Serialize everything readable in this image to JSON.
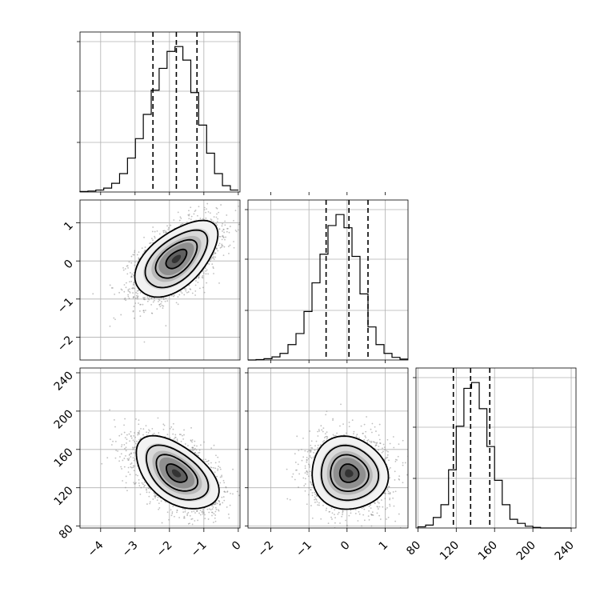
{
  "chart_data": {
    "type": "corner",
    "title": "",
    "grid": true,
    "colors": {
      "line": "#000000",
      "grid": "#b0b0b0",
      "points": "#8a8a8a"
    },
    "parameters": [
      {
        "ticks": [
          -4,
          -3,
          -2,
          -1,
          0
        ],
        "tick_labels": [
          "−4",
          "−3",
          "−2",
          "−1",
          "0"
        ],
        "range": [
          -4.6,
          0.05
        ],
        "median": -1.8,
        "q16": -2.48,
        "q84": -1.2,
        "sd": 0.6
      },
      {
        "ticks": [
          -2,
          -1,
          0,
          1
        ],
        "tick_labels": [
          "−2",
          "−1",
          "0",
          "1"
        ],
        "range": [
          -2.6,
          1.6
        ],
        "median": 0.05,
        "q16": -0.55,
        "q84": 0.55,
        "sd": 0.5
      },
      {
        "ticks": [
          80,
          120,
          160,
          200,
          240
        ],
        "tick_labels": [
          "80",
          "120",
          "160",
          "200",
          "240"
        ],
        "range": [
          78,
          245
        ],
        "median": 135,
        "q16": 117,
        "q84": 155,
        "sd": 19
      }
    ],
    "histograms": [
      {
        "param": 0,
        "bin_edges": [
          -4.6,
          -4.37,
          -4.14,
          -3.91,
          -3.68,
          -3.45,
          -3.22,
          -2.99,
          -2.76,
          -2.53,
          -2.3,
          -2.07,
          -1.84,
          -1.61,
          -1.38,
          -1.15,
          -0.92,
          -0.69,
          -0.46,
          -0.23,
          0.0
        ],
        "counts": [
          1,
          2,
          4,
          8,
          18,
          38,
          70,
          110,
          160,
          210,
          255,
          290,
          300,
          272,
          205,
          138,
          80,
          38,
          13,
          4
        ],
        "quantile_lines": [
          -2.48,
          -1.8,
          -1.2
        ]
      },
      {
        "param": 1,
        "bin_edges": [
          -2.6,
          -2.39,
          -2.18,
          -1.97,
          -1.76,
          -1.55,
          -1.34,
          -1.13,
          -0.92,
          -0.71,
          -0.5,
          -0.29,
          -0.08,
          0.13,
          0.34,
          0.55,
          0.76,
          0.97,
          1.18,
          1.39,
          1.6
        ],
        "counts": [
          0,
          1,
          3,
          7,
          15,
          35,
          60,
          110,
          175,
          240,
          305,
          330,
          300,
          235,
          150,
          75,
          35,
          15,
          6,
          2
        ],
        "quantile_lines": [
          -0.55,
          0.05,
          0.55
        ]
      },
      {
        "param": 2,
        "bin_edges": [
          80,
          88,
          96,
          104,
          112,
          120,
          128,
          136,
          144,
          152,
          160,
          168,
          176,
          184,
          192,
          200,
          208,
          216,
          224,
          232,
          240
        ],
        "counts": [
          2,
          5,
          18,
          40,
          100,
          175,
          240,
          250,
          205,
          140,
          82,
          40,
          15,
          8,
          3,
          1,
          0,
          0,
          0,
          0
        ],
        "quantile_lines": [
          117,
          135,
          155
        ]
      }
    ],
    "joint": [
      {
        "x_param": 0,
        "y_param": 1,
        "correlation": 0.55
      },
      {
        "x_param": 0,
        "y_param": 2,
        "correlation": -0.5
      },
      {
        "x_param": 1,
        "y_param": 2,
        "correlation": -0.05
      }
    ]
  }
}
